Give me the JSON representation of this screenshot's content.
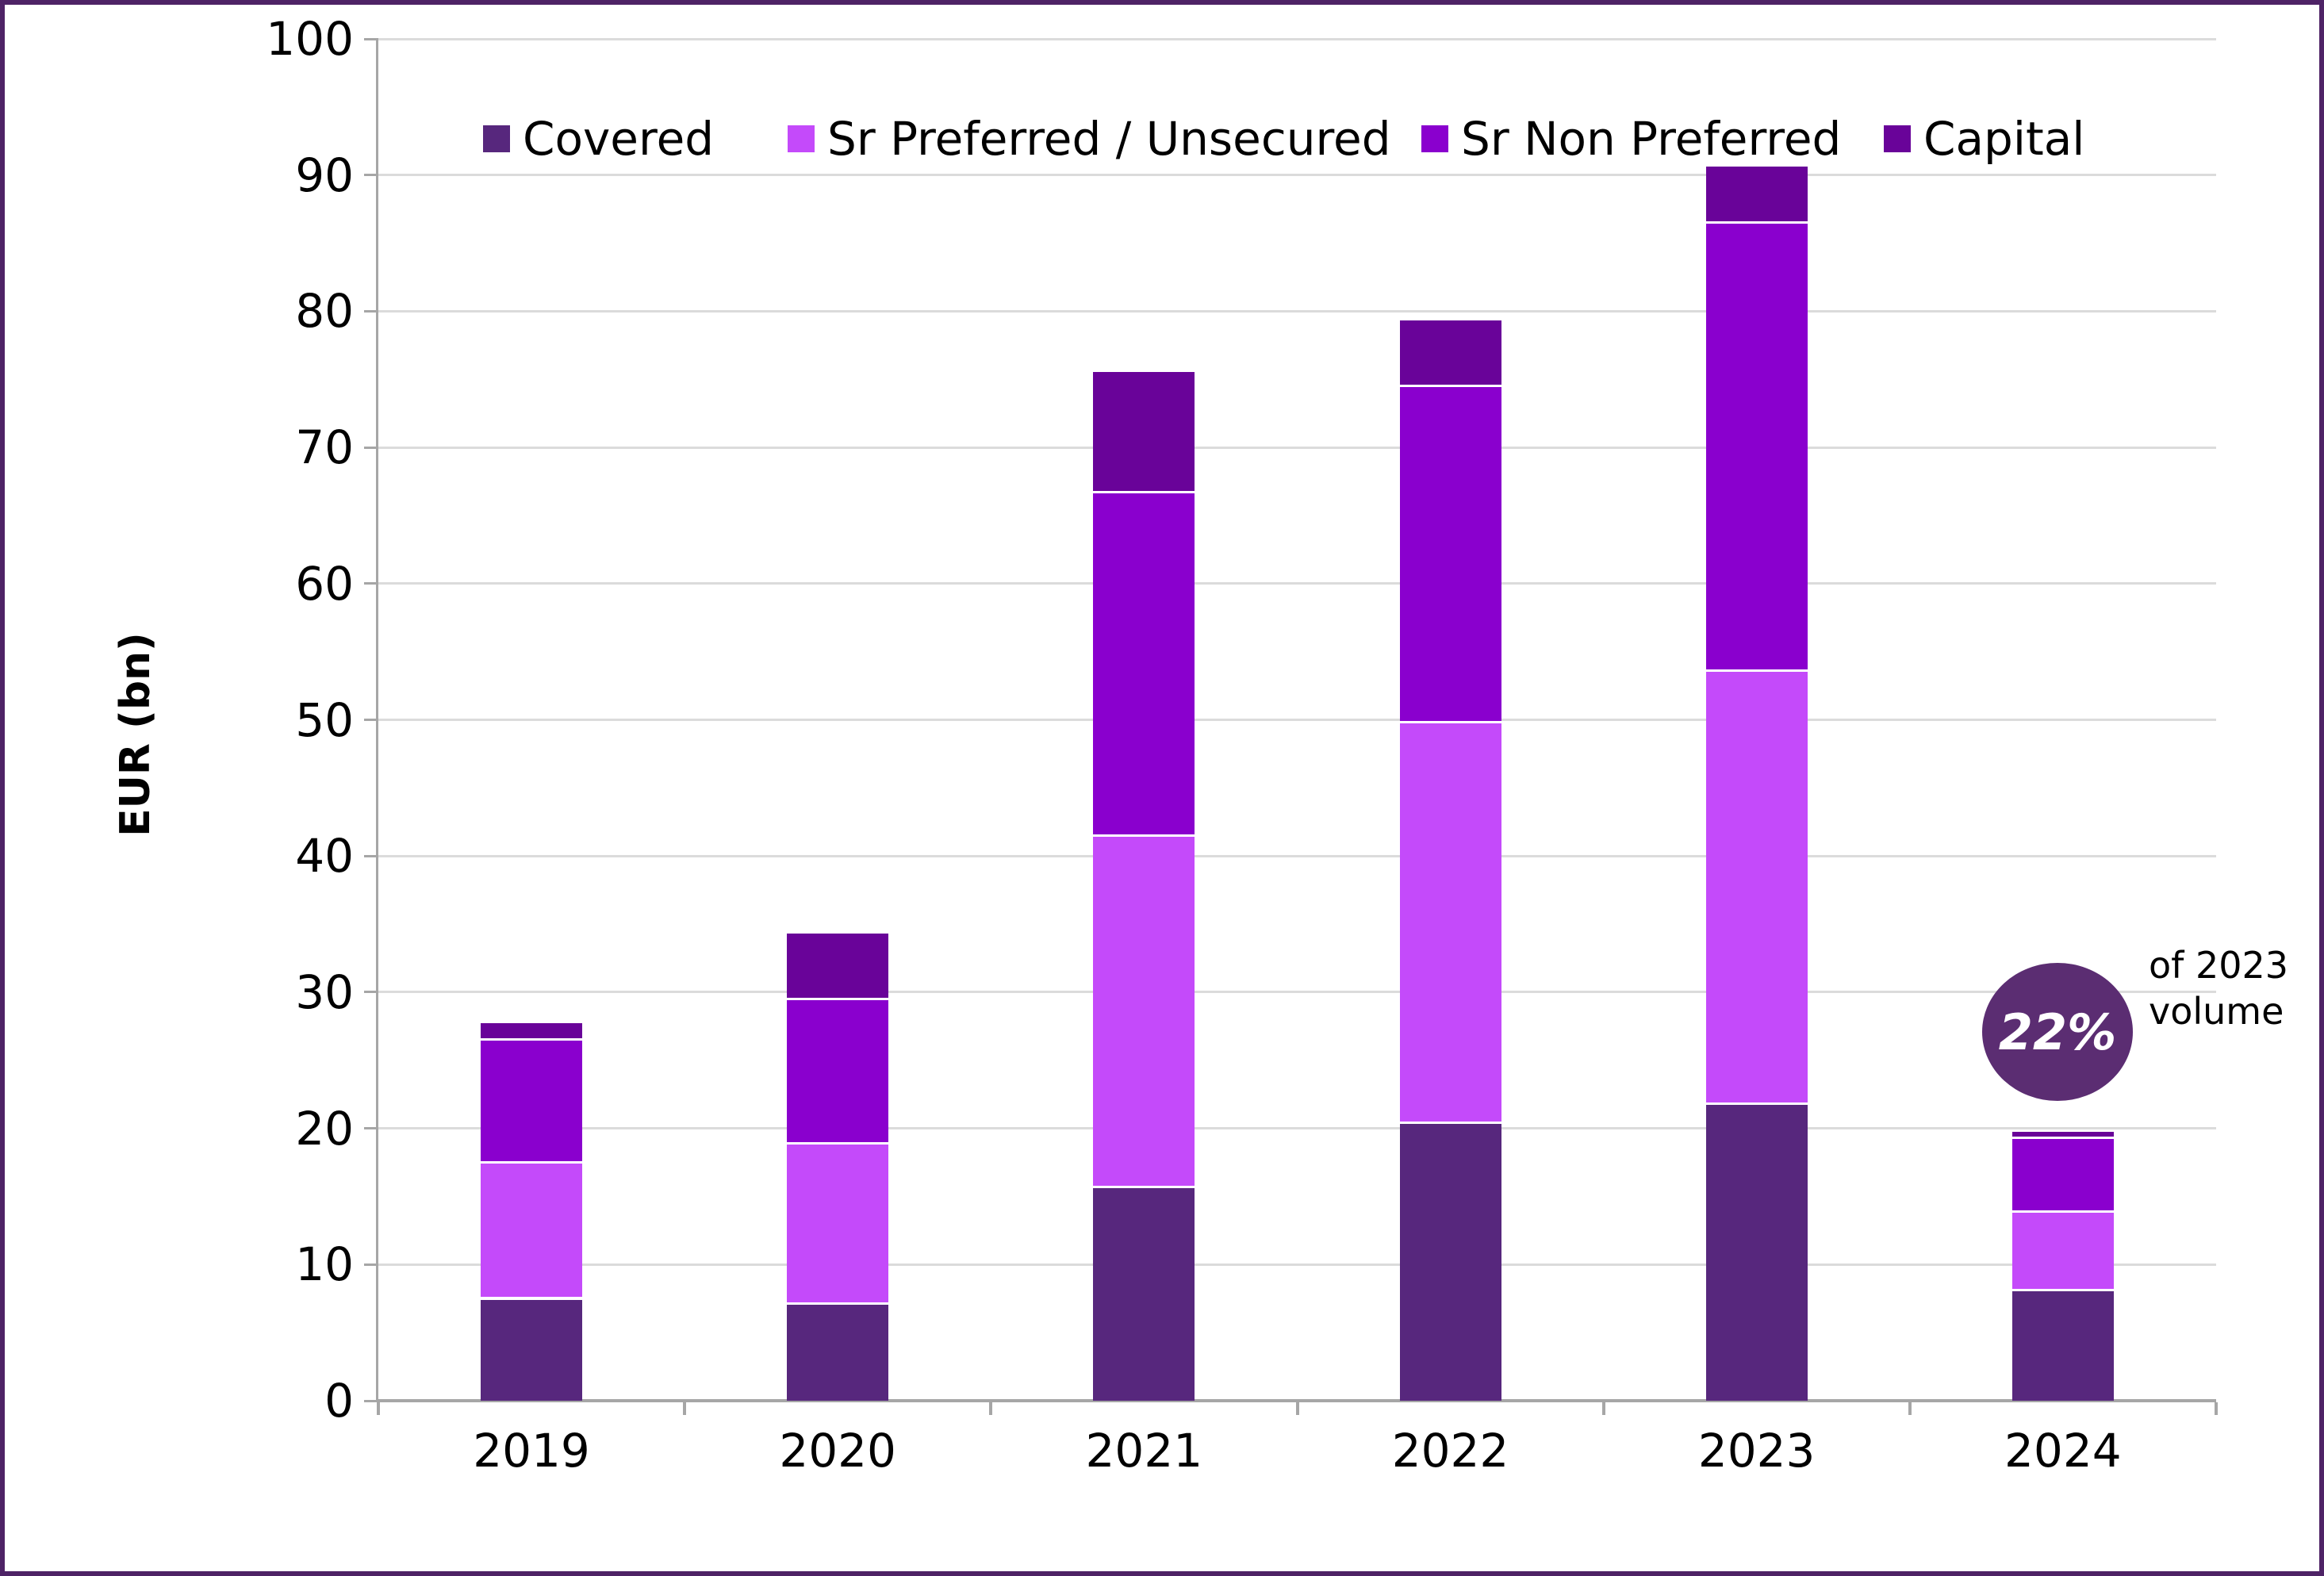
{
  "frame": {
    "border_color": "#4E2366",
    "background_color": "#FFFFFF"
  },
  "chart_data": {
    "type": "bar",
    "stacked": true,
    "title": "",
    "xlabel": "",
    "ylabel": "EUR (bn)",
    "ylim": [
      0,
      100
    ],
    "ytick_interval": 10,
    "ytick_labels": [
      "0",
      "10",
      "20",
      "30",
      "40",
      "50",
      "60",
      "70",
      "80",
      "90",
      "100"
    ],
    "categories": [
      "2019",
      "2020",
      "2021",
      "2022",
      "2023",
      "2024"
    ],
    "series": [
      {
        "name": "Covered",
        "color": "#57277D",
        "values": [
          7.6,
          7.2,
          15.8,
          20.5,
          21.9,
          8.2
        ]
      },
      {
        "name": "Sr Preferred / Unsecured",
        "color": "#C44AFA",
        "values": [
          10.0,
          11.8,
          25.8,
          29.4,
          31.8,
          5.8
        ]
      },
      {
        "name": "Sr Non Preferred",
        "color": "#8A00CE",
        "values": [
          9.0,
          10.6,
          25.2,
          24.7,
          32.9,
          5.4
        ]
      },
      {
        "name": "Capital",
        "color": "#690399",
        "values": [
          1.3,
          4.9,
          8.9,
          4.9,
          4.2,
          0.5
        ]
      }
    ],
    "totals": [
      27.9,
      34.5,
      75.7,
      79.5,
      90.8,
      19.9
    ],
    "legend_position": "top",
    "grid": "horizontal",
    "gridline_color": "#DBDBDB",
    "axis_color": "#A6A6A6",
    "segment_separator_color": "#FFFFFF"
  },
  "annotation": {
    "circle_label": "22%",
    "circle_color": "#5B2D72",
    "circle_text_color": "#FFFFFF",
    "side_text_line1": "of 2023",
    "side_text_line2": "volume"
  }
}
